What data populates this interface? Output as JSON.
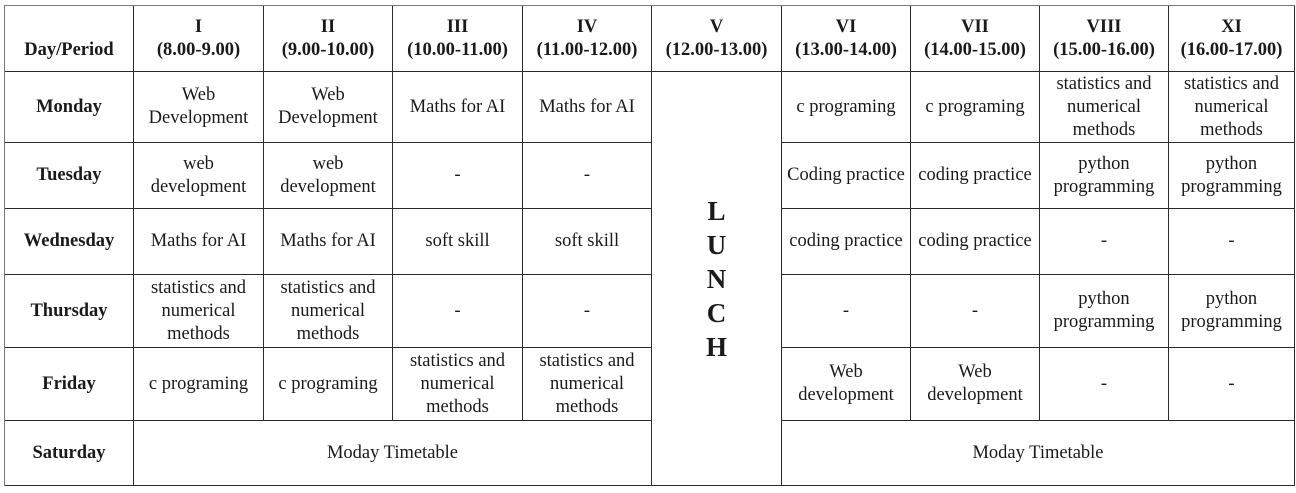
{
  "header": {
    "corner": "Day/Period",
    "periods": [
      {
        "num": "I",
        "time": "(8.00-9.00)"
      },
      {
        "num": "II",
        "time": "(9.00-10.00)"
      },
      {
        "num": "III",
        "time": "(10.00-11.00)"
      },
      {
        "num": "IV",
        "time": "(11.00-12.00)"
      },
      {
        "num": "V",
        "time": "(12.00-13.00)"
      },
      {
        "num": "VI",
        "time": "(13.00-14.00)"
      },
      {
        "num": "VII",
        "time": "(14.00-15.00)"
      },
      {
        "num": "VIII",
        "time": "(15.00-16.00)"
      },
      {
        "num": "XI",
        "time": "(16.00-17.00)"
      }
    ]
  },
  "lunch": [
    "L",
    "U",
    "N",
    "C",
    "H"
  ],
  "rows": {
    "monday": {
      "day": "Monday",
      "cells": [
        "Web Development",
        "Web Development",
        "Maths for AI",
        "Maths for AI",
        "c programing",
        "c programing",
        "statistics and numerical methods",
        "statistics and numerical methods"
      ]
    },
    "tuesday": {
      "day": "Tuesday",
      "cells": [
        "web development",
        "web development",
        "-",
        "-",
        "Coding practice",
        "coding practice",
        "python programming",
        "python programming"
      ]
    },
    "wednesday": {
      "day": "Wednesday",
      "cells": [
        "Maths for AI",
        "Maths for AI",
        "soft skill",
        "soft skill",
        "coding practice",
        "coding practice",
        "-",
        "-"
      ]
    },
    "thursday": {
      "day": "Thursday",
      "cells": [
        "statistics and numerical methods",
        "statistics and numerical methods",
        "-",
        "-",
        "-",
        "-",
        "python programming",
        "python programming"
      ]
    },
    "friday": {
      "day": "Friday",
      "cells": [
        "c programing",
        "c programing",
        "statistics and numerical methods",
        "statistics and numerical methods",
        "Web development",
        "Web development",
        "-",
        "-"
      ]
    },
    "saturday": {
      "day": "Saturday",
      "morning": "Moday Timetable",
      "afternoon": "Moday Timetable"
    }
  }
}
